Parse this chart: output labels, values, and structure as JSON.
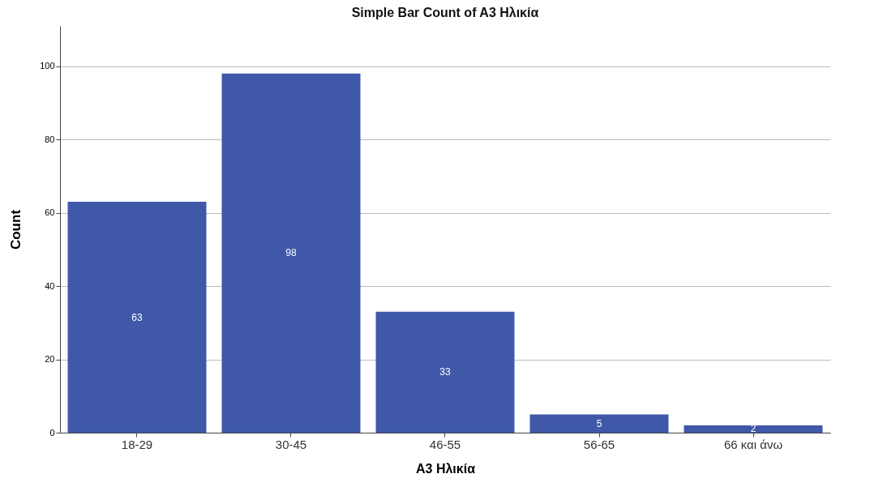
{
  "chart_data": {
    "type": "bar",
    "title": "Simple Bar Count of A3 Ηλικία",
    "xlabel": "A3 Ηλικία",
    "ylabel": "Count",
    "categories": [
      "18-29",
      "30-45",
      "46-55",
      "56-65",
      "66 και άνω"
    ],
    "values": [
      63,
      98,
      33,
      5,
      2
    ],
    "color": "#3f59a8",
    "ylim": [
      0,
      111
    ],
    "yticks": [
      0,
      20,
      40,
      60,
      80,
      100
    ],
    "grid": "y",
    "data_labels": true
  }
}
